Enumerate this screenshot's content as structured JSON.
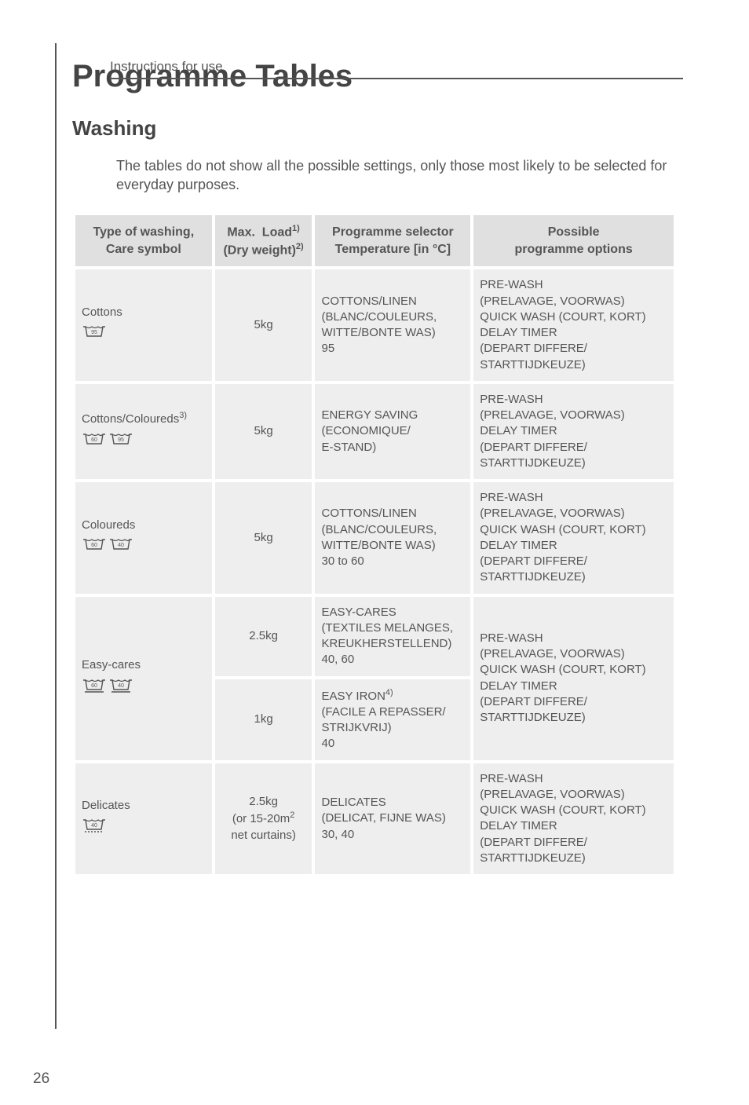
{
  "header": "Instructions for use",
  "title": "Programme Tables",
  "subtitle": "Washing",
  "intro": "The tables do not show all the possible settings, only those most likely to be selected for everyday purposes.",
  "pageNumber": "26",
  "table": {
    "headers": [
      "Type of washing,<br>Care symbol",
      "Max.&nbsp;&nbsp;Load<sup>1)</sup><br>(Dry weight)<sup>2)</sup>",
      "Programme selector<br>Temperature [in °C]",
      "Possible<br>programme options"
    ],
    "rows": [
      {
        "type": "Cottons",
        "symbols": [
          "95"
        ],
        "load": "5kg",
        "programme": "COTTONS/LINEN<br>(BLANC/COULEURS,<br>WITTE/BONTE WAS)<br>95",
        "options": "PRE-WASH<br>(PRELAVAGE, VOORWAS)<br>QUICK WASH (COURT, KORT)<br>DELAY TIMER<br>(DEPART DIFFERE/<br>STARTTIJDKEUZE)"
      },
      {
        "type": "Cottons/Coloureds<sup>3)</sup>",
        "symbols": [
          "60",
          "95"
        ],
        "load": "5kg",
        "programme": "ENERGY SAVING<br>(ECONOMIQUE/<br>E-STAND)",
        "options": "PRE-WASH<br>(PRELAVAGE, VOORWAS)<br>DELAY TIMER<br>(DEPART DIFFERE/<br>STARTTIJDKEUZE)"
      },
      {
        "type": "Coloureds",
        "symbols": [
          "60",
          "40"
        ],
        "load": "5kg",
        "programme": "COTTONS/LINEN<br>(BLANC/COULEURS,<br>WITTE/BONTE WAS)<br>30 to 60",
        "options": "PRE-WASH<br>(PRELAVAGE, VOORWAS)<br>QUICK WASH (COURT, KORT)<br>DELAY TIMER<br>(DEPART DIFFERE/<br>STARTTIJDKEUZE)"
      },
      {
        "type": "Easy-cares",
        "symbols": [
          "60",
          "40"
        ],
        "easycare": true,
        "sub": [
          {
            "load": "2.5kg",
            "programme": "EASY-CARES<br>(TEXTILES MELANGES,<br>KREUKHERSTELLEND)<br>40, 60"
          },
          {
            "load": "1kg",
            "programme": "EASY  IRON<sup>4)</sup><br>(FACILE A REPASSER/<br>STRIJKVRIJ)<br>40"
          }
        ],
        "options": "PRE-WASH<br>(PRELAVAGE, VOORWAS)<br>QUICK WASH (COURT, KORT)<br>DELAY TIMER<br>(DEPART DIFFERE/<br>STARTTIJDKEUZE)"
      },
      {
        "type": "Delicates",
        "symbols": [
          "40"
        ],
        "delicate": true,
        "load": "2.5kg<br>(or 15-20m<sup>2</sup><br>net curtains)",
        "programme": "DELICATES<br>(DELICAT, FIJNE WAS)<br>30, 40",
        "options": "PRE-WASH<br>(PRELAVAGE, VOORWAS)<br>QUICK WASH (COURT, KORT)<br>DELAY TIMER<br>(DEPART DIFFERE/<br>STARTTIJDKEUZE)"
      }
    ]
  }
}
